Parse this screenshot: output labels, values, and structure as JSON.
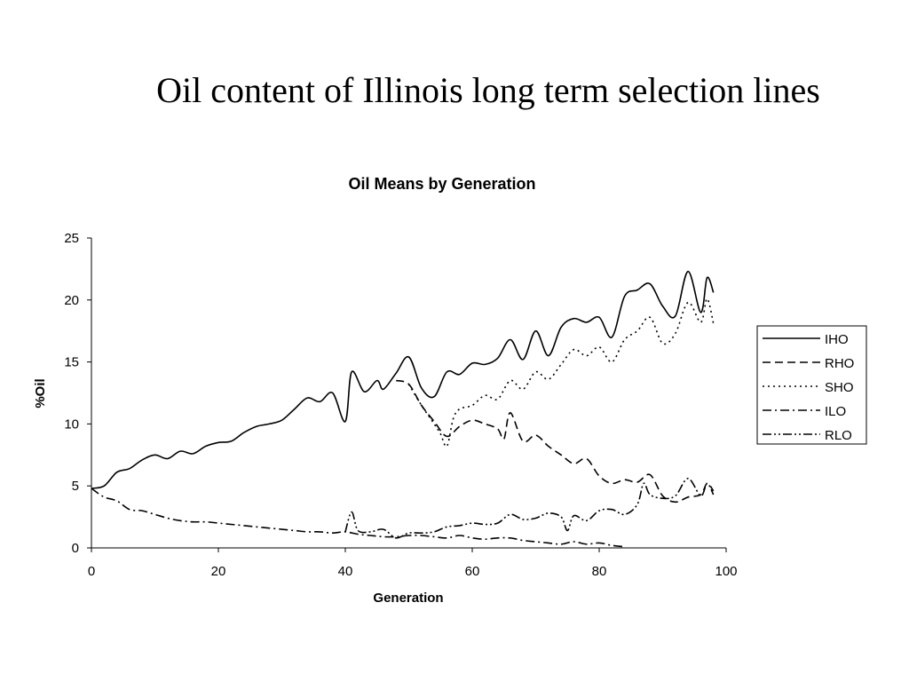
{
  "slide": {
    "title": "Oil content of Illinois long term selection lines"
  },
  "chart_data": {
    "type": "line",
    "title": "Oil Means by Generation",
    "xlabel": "Generation",
    "ylabel": "%Oil",
    "xlim": [
      0,
      100
    ],
    "ylim": [
      0,
      25
    ],
    "xticks": [
      0,
      20,
      40,
      60,
      80,
      100
    ],
    "yticks": [
      0,
      5,
      10,
      15,
      20,
      25
    ],
    "grid": false,
    "legend_position": "right",
    "series": [
      {
        "name": "IHO",
        "dash": "solid",
        "x": [
          0,
          2,
          4,
          6,
          8,
          10,
          12,
          14,
          16,
          18,
          20,
          22,
          24,
          26,
          28,
          30,
          32,
          34,
          36,
          38,
          40,
          41,
          43,
          45,
          46,
          48,
          50,
          52,
          54,
          56,
          58,
          60,
          62,
          64,
          66,
          68,
          70,
          72,
          74,
          76,
          78,
          80,
          82,
          84,
          86,
          88,
          90,
          92,
          94,
          96,
          97,
          98
        ],
        "y": [
          4.8,
          5.0,
          6.1,
          6.4,
          7.1,
          7.5,
          7.2,
          7.8,
          7.6,
          8.2,
          8.5,
          8.6,
          9.3,
          9.8,
          10.0,
          10.3,
          11.2,
          12.1,
          11.8,
          12.5,
          10.2,
          14.2,
          12.6,
          13.5,
          12.8,
          14.1,
          15.4,
          12.9,
          12.2,
          14.2,
          14.0,
          14.9,
          14.8,
          15.3,
          16.8,
          15.2,
          17.5,
          15.5,
          17.8,
          18.5,
          18.2,
          18.6,
          17.0,
          20.3,
          20.8,
          21.3,
          19.5,
          18.7,
          22.3,
          19.0,
          21.8,
          20.6
        ]
      },
      {
        "name": "RHO",
        "dash": "dashed",
        "x": [
          48,
          50,
          52,
          54,
          56,
          58,
          60,
          62,
          64,
          65,
          66,
          68,
          70,
          72,
          74,
          76,
          78,
          80,
          82,
          84,
          86,
          88,
          90,
          92,
          94,
          96,
          97,
          98
        ],
        "y": [
          13.5,
          13.2,
          11.5,
          10.2,
          9.0,
          9.8,
          10.3,
          10.0,
          9.6,
          8.8,
          10.9,
          8.6,
          9.1,
          8.2,
          7.5,
          6.8,
          7.2,
          5.8,
          5.2,
          5.5,
          5.3,
          5.9,
          4.2,
          3.7,
          4.1,
          4.3,
          5.2,
          4.6
        ]
      },
      {
        "name": "SHO",
        "dash": "dotted",
        "x": [
          50,
          52,
          54,
          55,
          56,
          57,
          58,
          60,
          62,
          64,
          66,
          68,
          70,
          72,
          74,
          76,
          78,
          80,
          82,
          84,
          86,
          88,
          90,
          92,
          94,
          96,
          97,
          98
        ],
        "y": [
          13.2,
          11.5,
          10.0,
          9.2,
          8.2,
          10.4,
          11.2,
          11.5,
          12.3,
          12.0,
          13.5,
          12.8,
          14.2,
          13.6,
          14.8,
          16.0,
          15.5,
          16.2,
          15.0,
          16.8,
          17.5,
          18.6,
          16.5,
          17.3,
          19.8,
          18.2,
          20.1,
          18.1
        ]
      },
      {
        "name": "ILO",
        "dash": "dashdot",
        "x": [
          0,
          2,
          4,
          6,
          8,
          10,
          12,
          14,
          16,
          18,
          20,
          22,
          24,
          26,
          28,
          30,
          32,
          34,
          36,
          38,
          40,
          42,
          44,
          46,
          48,
          50,
          52,
          54,
          56,
          58,
          60,
          62,
          64,
          66,
          68,
          70,
          72,
          74,
          76,
          78,
          80,
          82,
          84
        ],
        "y": [
          4.8,
          4.1,
          3.8,
          3.1,
          3.0,
          2.7,
          2.4,
          2.2,
          2.1,
          2.1,
          2.0,
          1.9,
          1.8,
          1.7,
          1.6,
          1.5,
          1.4,
          1.3,
          1.3,
          1.2,
          1.3,
          1.1,
          1.0,
          0.9,
          0.9,
          1.0,
          1.0,
          0.9,
          0.8,
          1.0,
          0.8,
          0.7,
          0.8,
          0.8,
          0.6,
          0.5,
          0.4,
          0.3,
          0.5,
          0.3,
          0.4,
          0.2,
          0.1
        ]
      },
      {
        "name": "RLO",
        "dash": "dashdotdot",
        "x": [
          40,
          41,
          42,
          44,
          46,
          48,
          50,
          52,
          54,
          56,
          58,
          60,
          62,
          64,
          66,
          68,
          70,
          72,
          74,
          75,
          76,
          78,
          80,
          82,
          84,
          86,
          87,
          88,
          90,
          92,
          94,
          96,
          97,
          98
        ],
        "y": [
          1.3,
          2.9,
          1.4,
          1.3,
          1.5,
          0.8,
          1.2,
          1.2,
          1.3,
          1.7,
          1.8,
          2.0,
          1.9,
          2.0,
          2.7,
          2.3,
          2.4,
          2.8,
          2.5,
          1.4,
          2.6,
          2.2,
          3.0,
          3.1,
          2.7,
          3.5,
          5.2,
          4.3,
          4.0,
          4.2,
          5.6,
          4.2,
          5.2,
          4.3
        ]
      }
    ]
  }
}
